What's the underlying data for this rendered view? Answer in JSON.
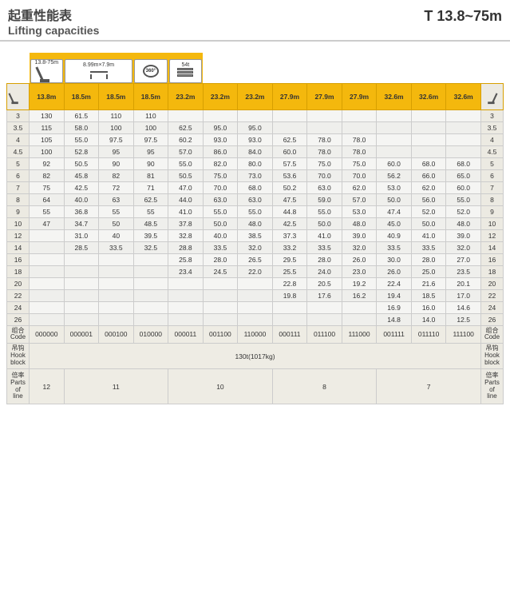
{
  "header": {
    "title_cn": "起重性能表",
    "title_en": "Lifting capacities",
    "range": "T  13.8~75m"
  },
  "icon_labels": {
    "boom_range": "13.8-75m",
    "outrigger": "8.99m×7.9m",
    "cw": "54t"
  },
  "columns": [
    "13.8m",
    "18.5m",
    "18.5m",
    "18.5m",
    "23.2m",
    "23.2m",
    "23.2m",
    "27.9m",
    "27.9m",
    "27.9m",
    "32.6m",
    "32.6m",
    "32.6m"
  ],
  "radius": [
    "3",
    "3.5",
    "4",
    "4.5",
    "5",
    "6",
    "7",
    "8",
    "9",
    "10",
    "12",
    "14",
    "16",
    "18",
    "20",
    "22",
    "24",
    "26"
  ],
  "data": [
    [
      "130",
      "61.5",
      "110",
      "110",
      "",
      "",
      "",
      "",
      "",
      "",
      "",
      "",
      ""
    ],
    [
      "115",
      "58.0",
      "100",
      "100",
      "62.5",
      "95.0",
      "95.0",
      "",
      "",
      "",
      "",
      "",
      ""
    ],
    [
      "105",
      "55.0",
      "97.5",
      "97.5",
      "60.2",
      "93.0",
      "93.0",
      "62.5",
      "78.0",
      "78.0",
      "",
      "",
      ""
    ],
    [
      "100",
      "52.8",
      "95",
      "95",
      "57.0",
      "86.0",
      "84.0",
      "60.0",
      "78.0",
      "78.0",
      "",
      "",
      ""
    ],
    [
      "92",
      "50.5",
      "90",
      "90",
      "55.0",
      "82.0",
      "80.0",
      "57.5",
      "75.0",
      "75.0",
      "60.0",
      "68.0",
      "68.0"
    ],
    [
      "82",
      "45.8",
      "82",
      "81",
      "50.5",
      "75.0",
      "73.0",
      "53.6",
      "70.0",
      "70.0",
      "56.2",
      "66.0",
      "65.0"
    ],
    [
      "75",
      "42.5",
      "72",
      "71",
      "47.0",
      "70.0",
      "68.0",
      "50.2",
      "63.0",
      "62.0",
      "53.0",
      "62.0",
      "60.0"
    ],
    [
      "64",
      "40.0",
      "63",
      "62.5",
      "44.0",
      "63.0",
      "63.0",
      "47.5",
      "59.0",
      "57.0",
      "50.0",
      "56.0",
      "55.0"
    ],
    [
      "55",
      "36.8",
      "55",
      "55",
      "41.0",
      "55.0",
      "55.0",
      "44.8",
      "55.0",
      "53.0",
      "47.4",
      "52.0",
      "52.0"
    ],
    [
      "47",
      "34.7",
      "50",
      "48.5",
      "37.8",
      "50.0",
      "48.0",
      "42.5",
      "50.0",
      "48.0",
      "45.0",
      "50.0",
      "48.0"
    ],
    [
      "",
      "31.0",
      "40",
      "39.5",
      "32.8",
      "40.0",
      "38.5",
      "37.3",
      "41.0",
      "39.0",
      "40.9",
      "41.0",
      "39.0"
    ],
    [
      "",
      "28.5",
      "33.5",
      "32.5",
      "28.8",
      "33.5",
      "32.0",
      "33.2",
      "33.5",
      "32.0",
      "33.5",
      "33.5",
      "32.0"
    ],
    [
      "",
      "",
      "",
      "",
      "25.8",
      "28.0",
      "26.5",
      "29.5",
      "28.0",
      "26.0",
      "30.0",
      "28.0",
      "27.0"
    ],
    [
      "",
      "",
      "",
      "",
      "23.4",
      "24.5",
      "22.0",
      "25.5",
      "24.0",
      "23.0",
      "26.0",
      "25.0",
      "23.5"
    ],
    [
      "",
      "",
      "",
      "",
      "",
      "",
      "",
      "22.8",
      "20.5",
      "19.2",
      "22.4",
      "21.6",
      "20.1"
    ],
    [
      "",
      "",
      "",
      "",
      "",
      "",
      "",
      "19.8",
      "17.6",
      "16.2",
      "19.4",
      "18.5",
      "17.0"
    ],
    [
      "",
      "",
      "",
      "",
      "",
      "",
      "",
      "",
      "",
      "",
      "16.9",
      "16.0",
      "14.6"
    ],
    [
      "",
      "",
      "",
      "",
      "",
      "",
      "",
      "",
      "",
      "",
      "14.8",
      "14.0",
      "12.5"
    ]
  ],
  "codes": [
    "000000",
    "000001",
    "000100",
    "010000",
    "000011",
    "001100",
    "110000",
    "000111",
    "011100",
    "111000",
    "001111",
    "011110",
    "111100"
  ],
  "code_label_cn": "组合",
  "code_label_en": "Code",
  "hook_label_cn": "吊钩",
  "hook_label_en1": "Hook",
  "hook_label_en2": "block",
  "hook_value": "130t(1017kg)",
  "parts_label_cn": "倍率",
  "parts_label_en1": "Parts",
  "parts_label_en2": "of",
  "parts_label_en3": "line",
  "parts": [
    {
      "span": 1,
      "val": "12"
    },
    {
      "span": 3,
      "val": "11"
    },
    {
      "span": 3,
      "val": "10"
    },
    {
      "span": 3,
      "val": "8"
    },
    {
      "span": 3,
      "val": "7"
    }
  ],
  "colors": {
    "accent": "#f4b80d",
    "grid": "#cccccc",
    "bg_light": "#f5f5f3",
    "bg_side": "#eceae2"
  }
}
